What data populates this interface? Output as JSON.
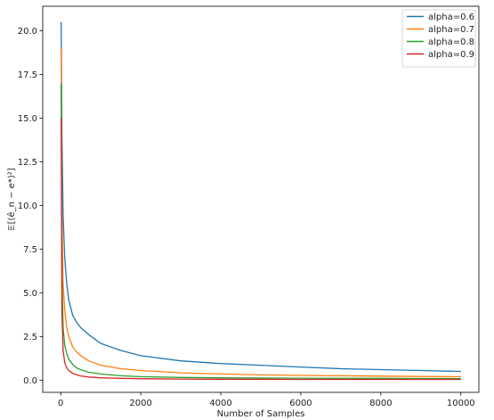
{
  "chart_data": {
    "type": "line",
    "title": "",
    "xlabel": "Number of Samples",
    "ylabel": "𝔼[(ê_n − e*)²]",
    "xlim": [
      -450,
      10450
    ],
    "ylim": [
      -0.7,
      21.4
    ],
    "xticks": [
      0,
      2000,
      4000,
      6000,
      8000,
      10000
    ],
    "xtick_labels": [
      "0",
      "2000",
      "4000",
      "6000",
      "8000",
      "10000"
    ],
    "yticks": [
      0.0,
      2.5,
      5.0,
      7.5,
      10.0,
      12.5,
      15.0,
      17.5,
      20.0
    ],
    "ytick_labels": [
      "0.0",
      "2.5",
      "5.0",
      "7.5",
      "10.0",
      "12.5",
      "15.0",
      "17.5",
      "20.0"
    ],
    "grid": false,
    "legend_position": "top-right",
    "series": [
      {
        "name": "alpha=0.6",
        "color": "#1f77b4",
        "x": [
          10,
          30,
          60,
          100,
          150,
          200,
          300,
          400,
          500,
          700,
          1000,
          1500,
          2000,
          3000,
          4000,
          5000,
          6000,
          7000,
          8000,
          9000,
          10000
        ],
        "y": [
          20.5,
          14.0,
          9.5,
          7.0,
          5.5,
          4.6,
          3.7,
          3.3,
          3.0,
          2.6,
          2.1,
          1.7,
          1.4,
          1.1,
          0.95,
          0.85,
          0.75,
          0.65,
          0.6,
          0.55,
          0.5
        ]
      },
      {
        "name": "alpha=0.7",
        "color": "#ff7f0e",
        "x": [
          10,
          30,
          60,
          100,
          150,
          200,
          300,
          400,
          500,
          700,
          1000,
          1500,
          2000,
          3000,
          4000,
          5000,
          6000,
          7000,
          8000,
          9000,
          10000
        ],
        "y": [
          19.0,
          9.5,
          5.5,
          4.0,
          3.0,
          2.5,
          1.9,
          1.6,
          1.4,
          1.1,
          0.85,
          0.65,
          0.55,
          0.42,
          0.35,
          0.3,
          0.27,
          0.25,
          0.23,
          0.21,
          0.2
        ]
      },
      {
        "name": "alpha=0.8",
        "color": "#2ca02c",
        "x": [
          10,
          30,
          60,
          100,
          150,
          200,
          300,
          400,
          500,
          700,
          1000,
          1500,
          2000,
          3000,
          4000,
          5000,
          6000,
          7000,
          8000,
          9000,
          10000
        ],
        "y": [
          17.0,
          6.0,
          3.0,
          2.0,
          1.5,
          1.2,
          0.9,
          0.7,
          0.6,
          0.45,
          0.35,
          0.25,
          0.2,
          0.15,
          0.13,
          0.12,
          0.11,
          0.1,
          0.1,
          0.09,
          0.09
        ]
      },
      {
        "name": "alpha=0.9",
        "color": "#d62728",
        "x": [
          10,
          30,
          60,
          100,
          150,
          200,
          300,
          400,
          500,
          700,
          1000,
          1500,
          2000,
          3000,
          4000,
          5000,
          6000,
          7000,
          8000,
          9000,
          10000
        ],
        "y": [
          15.0,
          3.8,
          1.7,
          1.0,
          0.7,
          0.55,
          0.38,
          0.3,
          0.24,
          0.18,
          0.13,
          0.1,
          0.08,
          0.06,
          0.05,
          0.05,
          0.04,
          0.04,
          0.04,
          0.04,
          0.04
        ]
      }
    ]
  }
}
